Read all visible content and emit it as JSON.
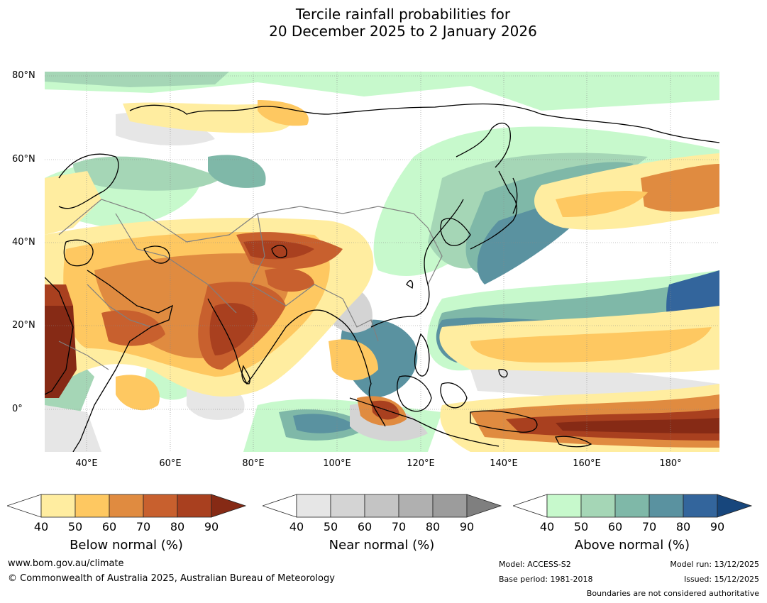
{
  "title_line1": "Tercile rainfall probabilities for",
  "title_line2": "20 December 2025 to 2 January 2026",
  "lat_labels": [
    "80°N",
    "60°N",
    "40°N",
    "20°N",
    "0°"
  ],
  "lon_labels": [
    "40°E",
    "60°E",
    "80°E",
    "100°E",
    "120°E",
    "140°E",
    "160°E",
    "180°"
  ],
  "colors": {
    "below": [
      "#ffeda0",
      "#fec861",
      "#e08b40",
      "#c8602e",
      "#a9401f",
      "#862a15"
    ],
    "near": [
      "#e6e6e6",
      "#d4d4d4",
      "#c4c4c4",
      "#b0b0b0",
      "#9c9c9c",
      "#7f7f7f"
    ],
    "above": [
      "#c7f9cc",
      "#a5d6b6",
      "#7fb8a8",
      "#5a92a0",
      "#33659c",
      "#17467c"
    ],
    "coast": "#000000",
    "borders": "#808080"
  },
  "colorbars": [
    {
      "caption": "Below normal (%)",
      "ticks": [
        "40",
        "50",
        "60",
        "70",
        "80",
        "90"
      ]
    },
    {
      "caption": "Near normal (%)",
      "ticks": [
        "40",
        "50",
        "60",
        "70",
        "80",
        "90"
      ]
    },
    {
      "caption": "Above normal (%)",
      "ticks": [
        "40",
        "50",
        "60",
        "70",
        "80",
        "90"
      ]
    }
  ],
  "footer": {
    "website": "www.bom.gov.au/climate",
    "copyright": "© Commonwealth of Australia 2025, Australian Bureau of Meteorology",
    "model": "Model: ACCESS-S2",
    "base_period": "Base period: 1981-2018",
    "model_run": "Model run: 13/12/2025",
    "issued": "Issued: 15/12/2025",
    "disclaimer": "Boundaries are not considered authoritative"
  }
}
